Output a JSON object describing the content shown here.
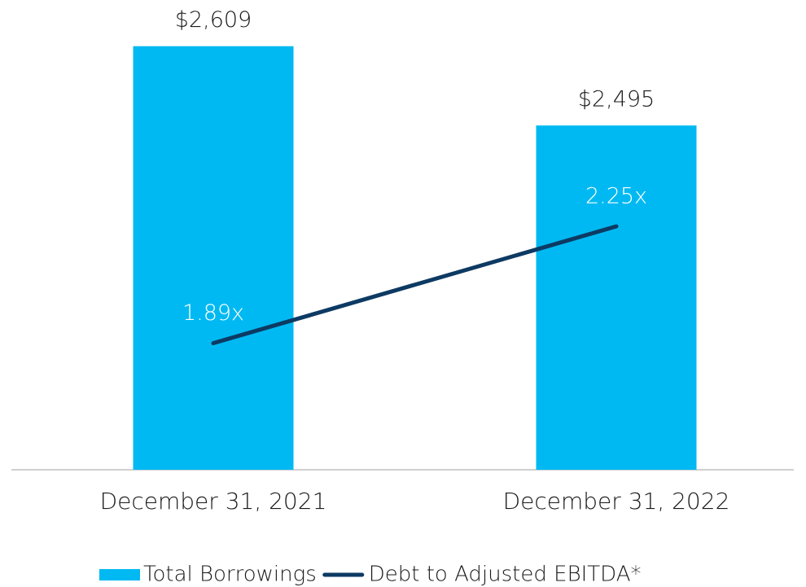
{
  "chart_data": {
    "type": "bar_line",
    "categories": [
      "December 31, 2021",
      "December 31, 2022"
    ],
    "series": [
      {
        "name": "Total Borrowings",
        "color": "#00b9f2",
        "values": [
          2609,
          2495
        ],
        "value_labels": [
          "$2,609",
          "$2,495"
        ]
      },
      {
        "name": "Debt to Adjusted EBITDA*",
        "color": "#0d3a63",
        "values": [
          1.89,
          2.25
        ],
        "value_labels": [
          "1.89x",
          "2.25x"
        ],
        "axis": "y2"
      }
    ],
    "ylim": [
      2000,
      2700
    ],
    "y2lim": [
      1.5,
      3.0
    ],
    "legend": "bottom"
  }
}
